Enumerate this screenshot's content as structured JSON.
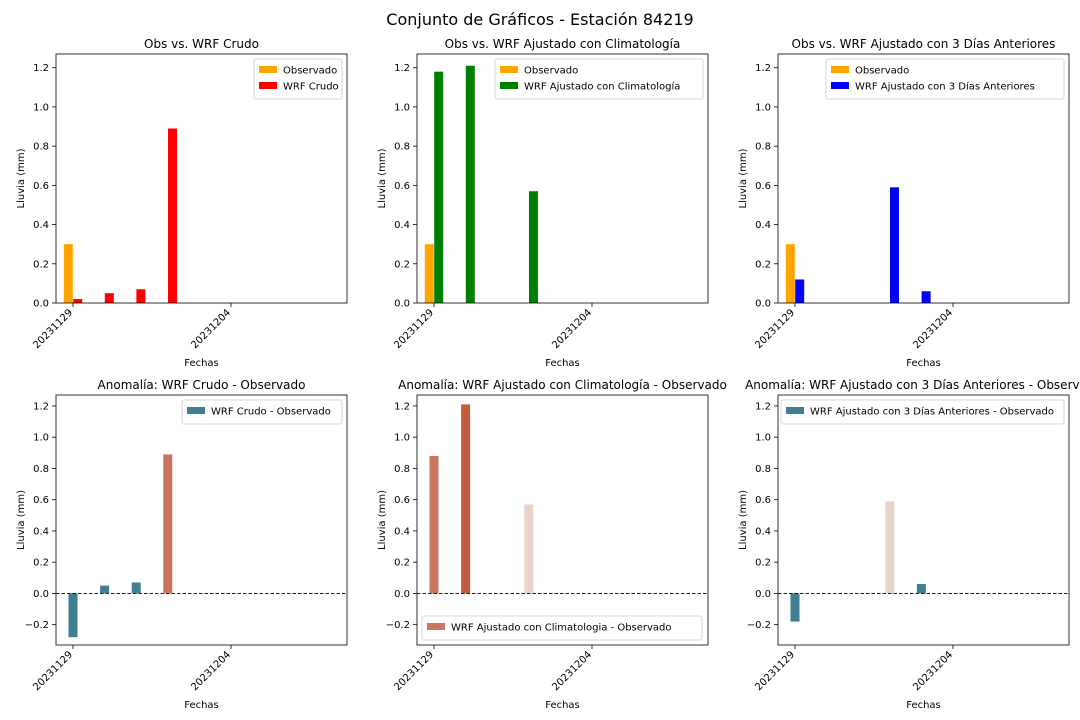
{
  "suptitle": "Conjunto de Gráficos - Estación 84219",
  "colors": {
    "observado": "#ffa500",
    "wrf_crudo": "#ff0000",
    "wrf_clim": "#008000",
    "wrf_3dias": "#0000ff",
    "anom_neg": "#3f7f8f",
    "anom_pos_strong": "#c65a3e",
    "anom_pos_mid": "#c97560",
    "anom_pos_weak": "#e8d3cb"
  },
  "chart_data": [
    {
      "type": "bar",
      "title": "Obs vs. WRF Crudo",
      "xlabel": "Fechas",
      "ylabel": "Lluvia (mm)",
      "ylim": [
        0,
        1.27
      ],
      "yticks": [
        0.0,
        0.2,
        0.4,
        0.6,
        0.8,
        1.0,
        1.2
      ],
      "ytick_labels": [
        "0.0",
        "0.2",
        "0.4",
        "0.6",
        "0.8",
        "1.0",
        "1.2"
      ],
      "xtick_labels": [
        "20231129",
        "20231204"
      ],
      "legend_loc": "top-right",
      "series": [
        {
          "name": "Observado",
          "color_key": "observado",
          "x": [
            "20231129"
          ],
          "values": [
            0.3
          ]
        },
        {
          "name": "WRF Crudo",
          "color_key": "wrf_crudo",
          "x": [
            "20231129",
            "20231130",
            "20231201",
            "20231202"
          ],
          "values": [
            0.02,
            0.05,
            0.07,
            0.89
          ]
        }
      ]
    },
    {
      "type": "bar",
      "title": "Obs vs. WRF Ajustado con Climatología",
      "xlabel": "Fechas",
      "ylabel": "Lluvia (mm)",
      "ylim": [
        0,
        1.27
      ],
      "yticks": [
        0.0,
        0.2,
        0.4,
        0.6,
        0.8,
        1.0,
        1.2
      ],
      "ytick_labels": [
        "0.0",
        "0.2",
        "0.4",
        "0.6",
        "0.8",
        "1.0",
        "1.2"
      ],
      "xtick_labels": [
        "20231129",
        "20231204"
      ],
      "legend_loc": "top-right",
      "series": [
        {
          "name": "Observado",
          "color_key": "observado",
          "x": [
            "20231129"
          ],
          "values": [
            0.3
          ]
        },
        {
          "name": "WRF Ajustado con Climatología",
          "color_key": "wrf_clim",
          "x": [
            "20231129",
            "20231130",
            "20231202"
          ],
          "values": [
            1.18,
            1.21,
            0.57
          ]
        }
      ]
    },
    {
      "type": "bar",
      "title": "Obs vs. WRF Ajustado con 3 Días Anteriores",
      "xlabel": "Fechas",
      "ylabel": "Lluvia (mm)",
      "ylim": [
        0,
        1.27
      ],
      "yticks": [
        0.0,
        0.2,
        0.4,
        0.6,
        0.8,
        1.0,
        1.2
      ],
      "ytick_labels": [
        "0.0",
        "0.2",
        "0.4",
        "0.6",
        "0.8",
        "1.0",
        "1.2"
      ],
      "xtick_labels": [
        "20231129",
        "20231204"
      ],
      "legend_loc": "top-right",
      "series": [
        {
          "name": "Observado",
          "color_key": "observado",
          "x": [
            "20231129"
          ],
          "values": [
            0.3
          ]
        },
        {
          "name": "WRF Ajustado con 3 Días Anteriores",
          "color_key": "wrf_3dias",
          "x": [
            "20231129",
            "20231202",
            "20231203"
          ],
          "values": [
            0.12,
            0.59,
            0.06
          ]
        }
      ]
    },
    {
      "type": "bar",
      "title": "Anomalía: WRF Crudo - Observado",
      "xlabel": "Fechas",
      "ylabel": "Lluvia (mm)",
      "ylim": [
        -0.33,
        1.27
      ],
      "yticks": [
        -0.2,
        0.0,
        0.2,
        0.4,
        0.6,
        0.8,
        1.0,
        1.2
      ],
      "ytick_labels": [
        "−0.2",
        "0.0",
        "0.2",
        "0.4",
        "0.6",
        "0.8",
        "1.0",
        "1.2"
      ],
      "xtick_labels": [
        "20231129",
        "20231204"
      ],
      "legend_loc": "top-right",
      "zero_line": true,
      "series": [
        {
          "name": "WRF Crudo - Observado",
          "x": [
            "20231129",
            "20231130",
            "20231201",
            "20231202"
          ],
          "values": [
            -0.28,
            0.05,
            0.07,
            0.89
          ],
          "color_keys": [
            "anom_neg",
            "anom_neg",
            "anom_neg",
            "anom_pos_mid"
          ]
        }
      ]
    },
    {
      "type": "bar",
      "title": "Anomalía: WRF Ajustado con Climatología - Observado",
      "xlabel": "Fechas",
      "ylabel": "Lluvia (mm)",
      "ylim": [
        -0.33,
        1.27
      ],
      "yticks": [
        -0.2,
        0.0,
        0.2,
        0.4,
        0.6,
        0.8,
        1.0,
        1.2
      ],
      "ytick_labels": [
        "−0.2",
        "0.0",
        "0.2",
        "0.4",
        "0.6",
        "0.8",
        "1.0",
        "1.2"
      ],
      "xtick_labels": [
        "20231129",
        "20231204"
      ],
      "legend_loc": "bottom-left",
      "zero_line": true,
      "series": [
        {
          "name": "WRF Ajustado con Climatologia - Observado",
          "x": [
            "20231129",
            "20231130",
            "20231202"
          ],
          "values": [
            0.88,
            1.21,
            0.57
          ],
          "color_keys": [
            "anom_pos_mid",
            "anom_pos_strong",
            "anom_pos_weak"
          ]
        }
      ]
    },
    {
      "type": "bar",
      "title": "Anomalía: WRF Ajustado con 3 Días Anteriores - Observado",
      "xlabel": "Fechas",
      "ylabel": "Lluvia (mm)",
      "ylim": [
        -0.33,
        1.27
      ],
      "yticks": [
        -0.2,
        0.0,
        0.2,
        0.4,
        0.6,
        0.8,
        1.0,
        1.2
      ],
      "ytick_labels": [
        "−0.2",
        "0.0",
        "0.2",
        "0.4",
        "0.6",
        "0.8",
        "1.0",
        "1.2"
      ],
      "xtick_labels": [
        "20231129",
        "20231204"
      ],
      "legend_loc": "top-right",
      "zero_line": true,
      "series": [
        {
          "name": "WRF Ajustado con 3 Días Anteriores - Observado",
          "x": [
            "20231129",
            "20231202",
            "20231203"
          ],
          "values": [
            -0.18,
            0.59,
            0.06
          ],
          "color_keys": [
            "anom_neg",
            "anom_pos_weak",
            "anom_neg"
          ]
        }
      ]
    }
  ]
}
